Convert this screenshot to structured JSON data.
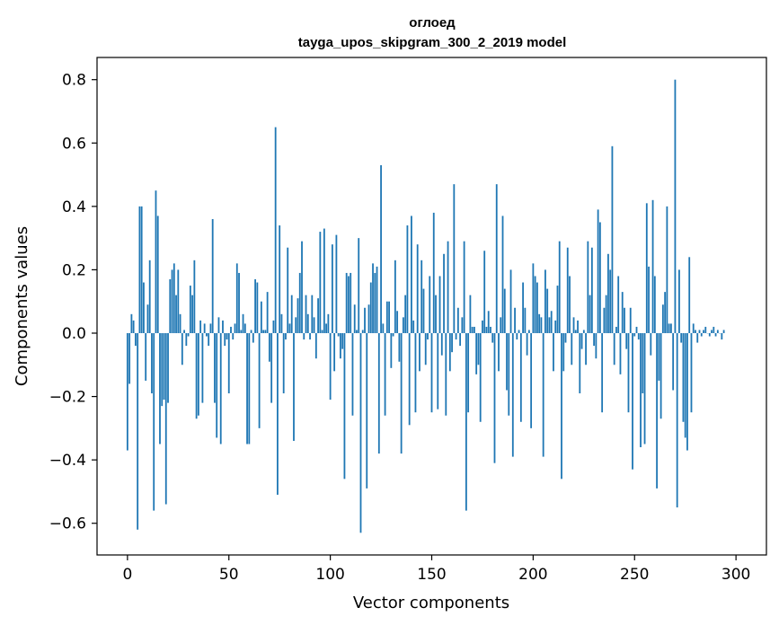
{
  "chart_data": {
    "type": "bar",
    "title": "оглоед",
    "subtitle": "tayga_upos_skipgram_300_2_2019 model",
    "xlabel": "Vector components",
    "ylabel": "Components values",
    "xlim": [
      -15,
      315
    ],
    "ylim": [
      -0.7,
      0.87
    ],
    "x_ticks": [
      0,
      50,
      100,
      150,
      200,
      250,
      300
    ],
    "y_ticks": [
      -0.6,
      -0.4,
      -0.2,
      0.0,
      0.2,
      0.4,
      0.6,
      0.8
    ],
    "x_tick_labels": [
      "0",
      "50",
      "100",
      "150",
      "200",
      "250",
      "300"
    ],
    "y_tick_labels": [
      "−0.6",
      "−0.4",
      "−0.2",
      "0.0",
      "0.2",
      "0.4",
      "0.6",
      "0.8"
    ],
    "bar_color": "#1f77b4",
    "values": [
      -0.37,
      -0.16,
      0.06,
      0.04,
      -0.04,
      -0.62,
      0.4,
      0.4,
      0.16,
      -0.15,
      0.09,
      0.23,
      -0.19,
      -0.56,
      0.45,
      0.37,
      -0.35,
      -0.23,
      -0.21,
      -0.54,
      -0.22,
      0.17,
      0.2,
      0.22,
      0.12,
      0.2,
      0.06,
      -0.1,
      0.01,
      -0.04,
      -0.01,
      0.15,
      0.12,
      0.23,
      -0.27,
      -0.26,
      0.04,
      -0.22,
      0.03,
      -0.01,
      -0.04,
      0.03,
      0.36,
      -0.22,
      -0.33,
      0.05,
      -0.35,
      0.04,
      -0.04,
      -0.02,
      -0.19,
      0.02,
      -0.02,
      0.03,
      0.22,
      0.19,
      0.01,
      0.06,
      0.03,
      -0.35,
      -0.35,
      0.01,
      -0.03,
      0.17,
      0.16,
      -0.3,
      0.1,
      0.01,
      0.01,
      0.13,
      -0.09,
      -0.22,
      0.04,
      0.65,
      -0.51,
      0.34,
      0.06,
      -0.19,
      -0.02,
      0.27,
      0.03,
      0.12,
      -0.34,
      0.05,
      0.11,
      0.19,
      0.29,
      -0.02,
      0.12,
      0.06,
      -0.02,
      0.12,
      0.05,
      -0.08,
      0.11,
      0.32,
      0.01,
      0.33,
      0.03,
      0.06,
      -0.21,
      0.28,
      -0.12,
      0.31,
      -0.01,
      -0.08,
      -0.05,
      -0.46,
      0.19,
      0.18,
      0.19,
      -0.26,
      0.09,
      0.01,
      0.3,
      -0.63,
      0.01,
      0.08,
      -0.49,
      0.09,
      0.16,
      0.22,
      0.19,
      0.21,
      -0.38,
      0.53,
      0.03,
      -0.26,
      0.1,
      0.1,
      -0.11,
      -0.01,
      0.23,
      0.07,
      -0.09,
      -0.38,
      0.05,
      0.12,
      0.34,
      -0.29,
      0.37,
      0.04,
      -0.25,
      0.28,
      -0.12,
      0.23,
      0.14,
      -0.1,
      -0.02,
      0.18,
      -0.25,
      0.38,
      0.12,
      -0.24,
      0.18,
      -0.07,
      0.25,
      -0.26,
      0.29,
      -0.12,
      -0.06,
      0.47,
      -0.02,
      0.08,
      -0.04,
      0.05,
      0.29,
      -0.56,
      -0.25,
      0.12,
      0.02,
      0.02,
      -0.13,
      -0.1,
      -0.28,
      0.04,
      0.26,
      0.02,
      0.07,
      0.02,
      -0.03,
      -0.41,
      0.47,
      -0.12,
      0.05,
      0.37,
      0.14,
      -0.18,
      -0.26,
      0.2,
      -0.39,
      0.08,
      -0.02,
      0.01,
      -0.28,
      0.16,
      0.08,
      -0.07,
      0.01,
      -0.3,
      0.22,
      0.18,
      0.16,
      0.06,
      0.05,
      -0.39,
      0.2,
      0.14,
      0.05,
      0.07,
      -0.12,
      0.04,
      0.15,
      0.29,
      -0.46,
      -0.12,
      -0.03,
      0.27,
      0.18,
      -0.1,
      0.05,
      0.01,
      0.04,
      -0.19,
      -0.05,
      0.01,
      -0.1,
      0.29,
      0.12,
      0.27,
      -0.04,
      -0.08,
      0.39,
      0.35,
      -0.25,
      0.08,
      0.12,
      0.25,
      0.2,
      0.59,
      -0.1,
      0.02,
      0.18,
      -0.13,
      0.13,
      0.08,
      -0.05,
      -0.25,
      0.08,
      -0.43,
      -0.01,
      0.02,
      -0.02,
      -0.36,
      -0.19,
      -0.35,
      0.41,
      0.21,
      -0.07,
      0.42,
      0.18,
      -0.49,
      -0.15,
      -0.27,
      0.09,
      0.13,
      0.4,
      0.03,
      0.03,
      -0.18,
      0.8,
      -0.55,
      0.2,
      -0.03,
      -0.28,
      -0.33,
      -0.37,
      0.24,
      -0.25,
      0.03,
      0.01,
      -0.03,
      0.01,
      -0.01,
      0.01,
      0.02,
      0.0,
      -0.01,
      0.01,
      0.02,
      -0.01,
      0.01,
      0.0,
      -0.02,
      0.01
    ]
  }
}
